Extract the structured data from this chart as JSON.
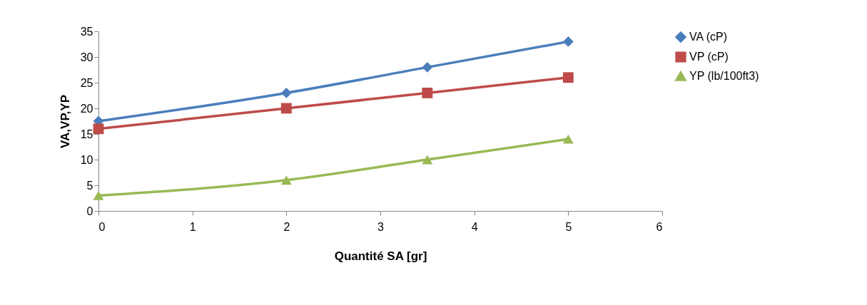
{
  "chart_data": {
    "type": "line",
    "xlabel": "Quantité SA [gr]",
    "ylabel": "VA,VP,YP",
    "xlim": [
      0,
      6
    ],
    "xticks": [
      0,
      1,
      2,
      3,
      4,
      5,
      6
    ],
    "ylim": [
      0,
      35
    ],
    "yticks": [
      0,
      5,
      10,
      15,
      20,
      25,
      30,
      35
    ],
    "grid": false,
    "legend": "right",
    "line_style": "solid",
    "x": [
      0,
      2,
      3.5,
      5
    ],
    "series": [
      {
        "name": "VA (cP)",
        "color": "#4a7ebb",
        "marker": "diamond",
        "values": [
          17.5,
          23,
          28,
          33
        ]
      },
      {
        "name": "VP (cP)",
        "color": "#be4b48",
        "marker": "square",
        "values": [
          16,
          20,
          23,
          26
        ]
      },
      {
        "name": "YP (lb/100ft3)",
        "color": "#98b954",
        "marker": "triangle",
        "values": [
          3,
          6,
          10,
          14
        ]
      }
    ]
  }
}
